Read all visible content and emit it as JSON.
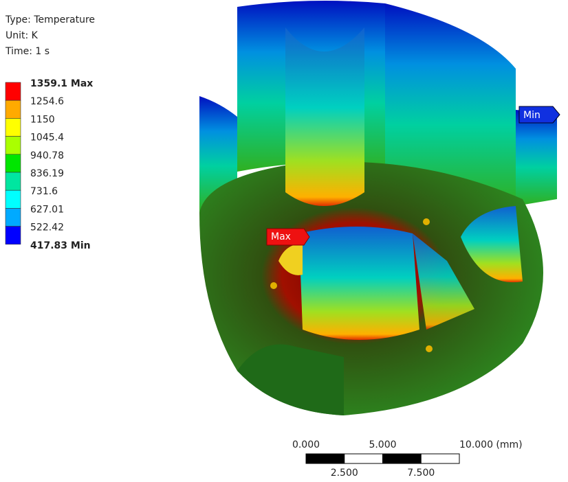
{
  "legend": {
    "type": "Type: Temperature",
    "unit": "Unit: K",
    "time": "Time: 1 s",
    "levels": [
      "1359.1 Max",
      "1254.6",
      "1150",
      "1045.4",
      "940.78",
      "836.19",
      "731.6",
      "627.01",
      "522.42",
      "417.83 Min"
    ],
    "colors": [
      "#ff0000",
      "#ffaa00",
      "#ffff00",
      "#aaff00",
      "#00e600",
      "#00e6a0",
      "#00ffff",
      "#00aaff",
      "#0000ff"
    ]
  },
  "probes": {
    "max": "Max",
    "min": "Min"
  },
  "scale_bar": {
    "top_labels": [
      "0.000",
      "5.000",
      "10.000 (mm)"
    ],
    "bottom_labels": [
      "2.500",
      "7.500"
    ]
  }
}
